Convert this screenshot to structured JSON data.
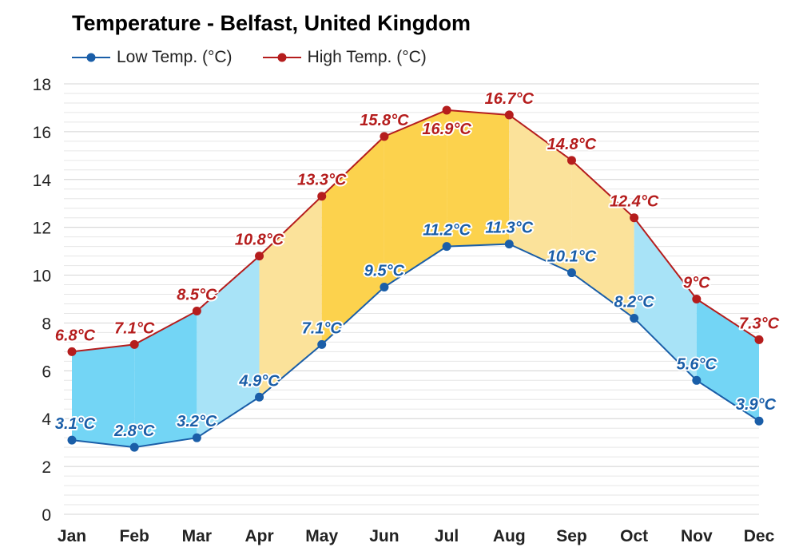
{
  "colors": {
    "low": "#1a5ea8",
    "high": "#b51d1d",
    "cold_fill": "#73d5f5",
    "cool_fill": "#a8e3f7",
    "mild_fill": "#fbe29a",
    "warm_fill": "#fcd24d"
  },
  "chart_data": {
    "type": "line",
    "title": "Temperature - Belfast, United Kingdom",
    "categories": [
      "Jan",
      "Feb",
      "Mar",
      "Apr",
      "May",
      "Jun",
      "Jul",
      "Aug",
      "Sep",
      "Oct",
      "Nov",
      "Dec"
    ],
    "series": [
      {
        "name": "Low Temp. (°C)",
        "values": [
          3.1,
          2.8,
          3.2,
          4.9,
          7.1,
          9.5,
          11.2,
          11.3,
          10.1,
          8.2,
          5.6,
          3.9
        ],
        "labels": [
          "3.1°C",
          "2.8°C",
          "3.2°C",
          "4.9°C",
          "7.1°C",
          "9.5°C",
          "11.2°C",
          "11.3°C",
          "10.1°C",
          "8.2°C",
          "5.6°C",
          "3.9°C"
        ]
      },
      {
        "name": "High Temp. (°C)",
        "values": [
          6.8,
          7.1,
          8.5,
          10.8,
          13.3,
          15.8,
          16.9,
          16.7,
          14.8,
          12.4,
          9.0,
          7.3
        ],
        "labels": [
          "6.8°C",
          "7.1°C",
          "8.5°C",
          "10.8°C",
          "13.3°C",
          "15.8°C",
          "16.9°C",
          "16.7°C",
          "14.8°C",
          "12.4°C",
          "9°C",
          "7.3°C"
        ]
      }
    ],
    "ylim": [
      0,
      18
    ],
    "yticks": [
      0,
      2,
      4,
      6,
      8,
      10,
      12,
      14,
      16,
      18
    ],
    "band_fill_by_interval": [
      "cold",
      "cold",
      "cool",
      "mild",
      "warm",
      "warm",
      "warm",
      "mild",
      "mild",
      "cool",
      "cold"
    ],
    "grid": true,
    "legend_position": "top-left"
  }
}
